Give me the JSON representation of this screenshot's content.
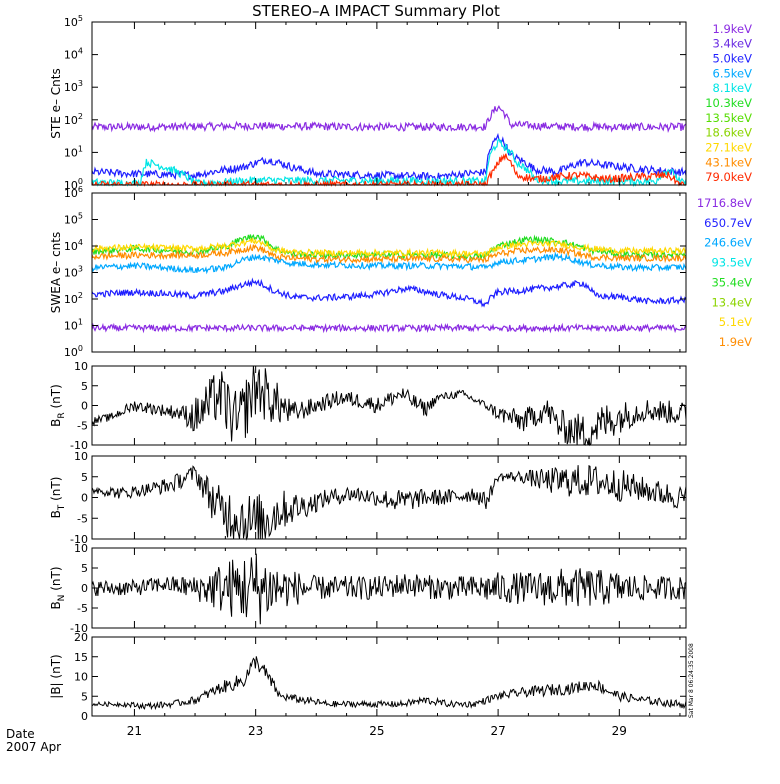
{
  "title": "STEREO–A IMPACT Summary Plot",
  "date_label": "Date",
  "date_value": "2007 Apr",
  "side_stamp": "Sat Mar  8 06:24:35 2008",
  "colors": {
    "background": "#ffffff",
    "axis": "#000000",
    "violet": "#8a2be2",
    "blue": "#1f1fff",
    "sky": "#00a8ff",
    "cyan": "#00e5e5",
    "green": "#22dd22",
    "lime": "#8bd400",
    "yellow": "#ffd800",
    "orange": "#ff8c00",
    "red": "#ff2a00"
  },
  "chart_data": [
    {
      "type": "line",
      "ylabel": "STE e– Cnts",
      "yscale": "log",
      "ylim": [
        1,
        100000
      ],
      "yticks": [
        "10^0",
        "10^1",
        "10^2",
        "10^3",
        "10^4",
        "10^5"
      ],
      "legend": [
        "1.9keV",
        "3.4keV",
        "5.0keV",
        "6.5keV",
        "8.1keV",
        "10.3keV",
        "13.5keV",
        "18.6keV",
        "27.1keV",
        "43.1keV",
        "79.0keV"
      ],
      "legend_colors": [
        "#8a2be2",
        "#6a2be2",
        "#1f1fff",
        "#00a8ff",
        "#00e5e5",
        "#22dd22",
        "#55dd00",
        "#8bd400",
        "#ffd800",
        "#ff8c00",
        "#ff2a00"
      ],
      "series": [
        {
          "color": "#8a2be2",
          "x": [
            20.3,
            21,
            22,
            23,
            24,
            25,
            26,
            26.8,
            27.0,
            27.2,
            28,
            29,
            30
          ],
          "y": [
            60,
            60,
            62,
            65,
            62,
            60,
            60,
            62,
            250,
            70,
            62,
            60,
            60
          ]
        },
        {
          "color": "#1f1fff",
          "x": [
            20.3,
            21,
            22,
            22.8,
            23.2,
            23.6,
            24,
            25,
            26,
            26.8,
            27.0,
            27.2,
            27.6,
            28,
            28.4,
            28.8,
            29.4,
            30
          ],
          "y": [
            2.5,
            2.2,
            2.0,
            3.5,
            6,
            3.5,
            2.2,
            2,
            1.8,
            2.5,
            30,
            8,
            3,
            2.5,
            5,
            4,
            3,
            2.5
          ]
        },
        {
          "color": "#00e5e5",
          "x": [
            20.3,
            21.1,
            21.2,
            22,
            23,
            26.8,
            27.0,
            27.3,
            27.6,
            28,
            29.6,
            29.8,
            30
          ],
          "y": [
            1.2,
            1.1,
            5,
            1.1,
            1.4,
            1.3,
            20,
            5,
            1.5,
            1.3,
            1.3,
            3,
            1.2
          ]
        },
        {
          "color": "#ff2a00",
          "x": [
            20.3,
            26.8,
            26.95,
            27.1,
            27.3,
            27.6,
            28.3,
            28.8,
            29.8,
            30
          ],
          "y": [
            1,
            1,
            3,
            8,
            2,
            1.5,
            2,
            1.5,
            2,
            1
          ]
        }
      ]
    },
    {
      "type": "line",
      "ylabel": "SWEA e– cnts",
      "yscale": "log",
      "ylim": [
        1,
        1000000
      ],
      "yticks": [
        "10^0",
        "10^1",
        "10^2",
        "10^3",
        "10^4",
        "10^5",
        "10^6"
      ],
      "legend": [
        "1716.8eV",
        "650.7eV",
        "246.6eV",
        "93.5eV",
        "35.4eV",
        "13.4eV",
        "5.1eV",
        "1.9eV"
      ],
      "legend_colors": [
        "#8a2be2",
        "#1f1fff",
        "#00a8ff",
        "#00e5e5",
        "#22dd22",
        "#8bd400",
        "#ffd800",
        "#ff8c00"
      ],
      "series": [
        {
          "color": "#8a2be2",
          "x": [
            20.3,
            30
          ],
          "y": [
            8,
            8
          ]
        },
        {
          "color": "#1f1fff",
          "x": [
            20.3,
            21,
            21.5,
            22,
            22.5,
            23,
            23.3,
            23.6,
            24,
            24.5,
            25,
            25.5,
            26,
            26.5,
            26.8,
            27,
            27.5,
            28,
            28.4,
            28.6,
            29,
            29.5,
            30
          ],
          "y": [
            150,
            180,
            160,
            130,
            200,
            450,
            200,
            120,
            110,
            120,
            150,
            250,
            150,
            100,
            60,
            180,
            220,
            300,
            400,
            130,
            120,
            80,
            90
          ]
        },
        {
          "color": "#00a8ff",
          "x": [
            20.3,
            21,
            21.5,
            22,
            22.5,
            23,
            23.3,
            23.6,
            24,
            25,
            26,
            26.5,
            26.8,
            27,
            27.5,
            28,
            28.5,
            29,
            29.5,
            30
          ],
          "y": [
            1500,
            1800,
            1500,
            1200,
            1500,
            4000,
            3000,
            2200,
            2000,
            1800,
            1800,
            1700,
            1500,
            2500,
            3000,
            4000,
            2000,
            1600,
            1500,
            1600
          ]
        },
        {
          "color": "#22dd22",
          "x": [
            20.3,
            21,
            21.5,
            22,
            22.5,
            23,
            23.3,
            23.6,
            24,
            25,
            26,
            26.8,
            27,
            27.5,
            28,
            28.5,
            29,
            29.5,
            30
          ],
          "y": [
            6000,
            8000,
            7000,
            6000,
            9000,
            25000,
            8000,
            5000,
            4500,
            4500,
            4500,
            4000,
            10000,
            18000,
            15000,
            7000,
            5000,
            4500,
            5000
          ]
        },
        {
          "color": "#ffd800",
          "x": [
            20.3,
            21,
            22,
            22.5,
            23,
            23.3,
            23.6,
            24,
            25,
            26,
            26.8,
            27,
            27.5,
            28,
            28.5,
            29,
            30
          ],
          "y": [
            8000,
            9000,
            8000,
            10000,
            16000,
            7000,
            6000,
            5500,
            5500,
            5500,
            5000,
            9000,
            12000,
            12000,
            8000,
            6500,
            6500
          ]
        },
        {
          "color": "#ff8c00",
          "x": [
            20.3,
            21,
            22,
            22.5,
            23,
            23.3,
            23.6,
            24,
            25,
            26,
            26.8,
            27,
            27.5,
            28,
            28.5,
            29,
            30
          ],
          "y": [
            4000,
            4500,
            4500,
            5500,
            9000,
            4000,
            3500,
            3200,
            3200,
            3300,
            3000,
            5000,
            7000,
            7000,
            4000,
            3500,
            3500
          ]
        }
      ]
    },
    {
      "type": "line",
      "ylabel": "B_R (nT)",
      "ylim": [
        -10,
        10
      ],
      "yticks": [
        "-10",
        "-5",
        "0",
        "5",
        "10"
      ],
      "series": [
        {
          "color": "#000000",
          "x": [
            20.3,
            20.6,
            21,
            21.4,
            21.8,
            22,
            22.4,
            22.7,
            23,
            23.3,
            23.6,
            24,
            24.4,
            24.8,
            25,
            25.4,
            25.8,
            26,
            26.4,
            26.8,
            27,
            27.4,
            27.8,
            28,
            28.4,
            28.8,
            29,
            29.4,
            30
          ],
          "y": [
            -4,
            -3,
            0,
            -1,
            -2,
            -3,
            3,
            -5,
            5,
            1,
            -2,
            0,
            2,
            1,
            0,
            3,
            -1,
            2,
            3,
            0,
            -2,
            -4,
            -1,
            -5,
            -7,
            -4,
            -3,
            -1,
            -2
          ],
          "noise": [
            1,
            1,
            1.5,
            1.5,
            2,
            5,
            7,
            8,
            8,
            6,
            3,
            2,
            2,
            2,
            2,
            2,
            2,
            1,
            1,
            1,
            2,
            3,
            3,
            4,
            5,
            5,
            4,
            3,
            3
          ]
        }
      ]
    },
    {
      "type": "line",
      "ylabel": "B_T (nT)",
      "ylim": [
        -10,
        10
      ],
      "yticks": [
        "-10",
        "-5",
        "0",
        "5",
        "10"
      ],
      "series": [
        {
          "color": "#000000",
          "x": [
            20.3,
            20.8,
            21.2,
            21.6,
            22,
            22.4,
            22.8,
            23,
            23.4,
            23.8,
            24.2,
            24.6,
            25,
            25.4,
            25.8,
            26.2,
            26.6,
            26.8,
            27,
            27.4,
            27.8,
            28.2,
            28.6,
            29,
            29.4,
            30
          ],
          "y": [
            2,
            1,
            2,
            3,
            6,
            -3,
            -5,
            -7,
            -3,
            -2,
            0,
            1,
            0,
            -1,
            0,
            0,
            1,
            -1,
            5,
            5,
            4,
            4,
            4,
            3,
            2,
            0
          ],
          "noise": [
            1,
            1.5,
            1.5,
            2,
            2,
            6,
            7,
            8,
            5,
            3,
            2,
            2,
            2,
            3,
            2,
            2,
            2,
            2,
            1,
            1.5,
            3,
            4,
            4,
            4,
            3,
            3
          ]
        }
      ]
    },
    {
      "type": "line",
      "ylabel": "B_N (nT)",
      "ylim": [
        -10,
        10
      ],
      "yticks": [
        "-10",
        "-5",
        "0",
        "5",
        "10"
      ],
      "series": [
        {
          "color": "#000000",
          "x": [
            20.3,
            21,
            21.5,
            22,
            22.5,
            23,
            23.5,
            24,
            24.5,
            25,
            25.5,
            26,
            26.5,
            27,
            27.5,
            28,
            28.5,
            29,
            29.5,
            30
          ],
          "y": [
            0,
            0,
            1,
            0,
            0,
            0,
            0,
            0,
            0,
            0,
            1,
            0,
            0,
            0,
            0,
            0,
            0,
            0,
            0,
            0
          ],
          "noise": [
            2,
            2,
            2,
            3,
            7,
            10,
            5,
            3,
            3,
            3,
            3,
            3,
            3,
            4,
            4,
            5,
            5,
            4,
            3,
            3
          ]
        }
      ]
    },
    {
      "type": "line",
      "ylabel": "|B| (nT)",
      "ylim": [
        0,
        20
      ],
      "yticks": [
        "0",
        "5",
        "10",
        "15",
        "20"
      ],
      "series": [
        {
          "color": "#000000",
          "x": [
            20.3,
            20.8,
            21.2,
            21.6,
            22,
            22.4,
            22.8,
            23,
            23.2,
            23.4,
            23.8,
            24.2,
            24.6,
            25,
            25.4,
            25.8,
            26.2,
            26.6,
            27,
            27.4,
            27.8,
            28.2,
            28.6,
            29,
            29.4,
            30
          ],
          "y": [
            3,
            3,
            2.5,
            3,
            4,
            7,
            9,
            14,
            10,
            5,
            4,
            3,
            3,
            3,
            3,
            4,
            3,
            3,
            5,
            6,
            6.5,
            7,
            8,
            5,
            4,
            3
          ],
          "noise": [
            0.5,
            0.6,
            0.8,
            0.8,
            1,
            1.5,
            2,
            2,
            2,
            1,
            1,
            0.8,
            0.8,
            0.8,
            0.8,
            1,
            0.8,
            0.8,
            1,
            1.2,
            1.5,
            1.5,
            1.5,
            1.2,
            1,
            1
          ]
        }
      ]
    }
  ],
  "x_axis": {
    "range": [
      20.3,
      30.1
    ],
    "major_ticks": [
      21,
      23,
      25,
      27,
      29
    ],
    "labels": [
      "21",
      "23",
      "25",
      "27",
      "29"
    ],
    "minor_ticks": [
      21.5,
      22,
      22.5,
      23.5,
      24,
      24.5,
      25.5,
      26,
      26.5,
      27.5,
      28,
      28.5,
      29.5,
      30
    ]
  }
}
